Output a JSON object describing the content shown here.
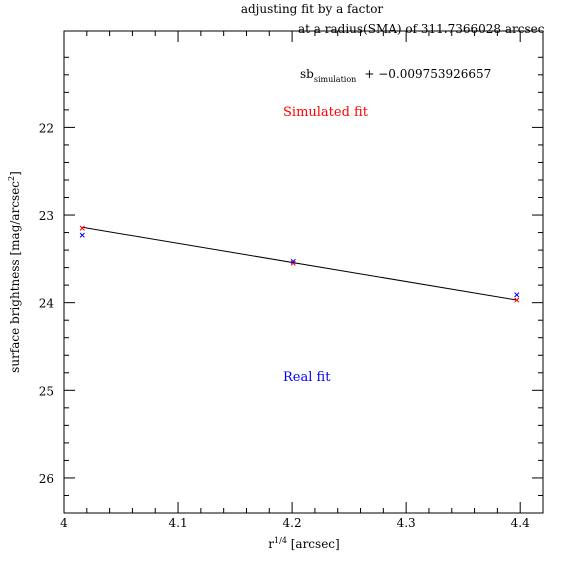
{
  "chart_data": {
    "type": "scatter",
    "title": "adjusting fit by a factor",
    "subtitle": "at a radius(SMA) of 311.7366028 arcsec",
    "annotations": {
      "sb_base": "sb",
      "sb_sub": "simulation",
      "sb_rest": "+ −0.009753926657",
      "simulated_label": "Simulated fit",
      "real_label": "Real fit"
    },
    "xlabel_base": "r",
    "xlabel_sup": "1/4",
    "xlabel_rest": " [arcsec]",
    "ylabel_base": "surface brightness [mag/arcsec",
    "ylabel_sup": "2",
    "ylabel_rest": "]",
    "xlim": [
      4.0,
      4.42
    ],
    "ylim": [
      26.4,
      20.9
    ],
    "y_inverted": true,
    "xticks": [
      4.0,
      4.1,
      4.2,
      4.3,
      4.4
    ],
    "xtick_labels": [
      "4",
      "4.1",
      "4.2",
      "4.3",
      "4.4"
    ],
    "yticks": [
      22,
      23,
      24,
      25,
      26
    ],
    "ytick_labels": [
      "22",
      "23",
      "24",
      "25",
      "26"
    ],
    "series": [
      {
        "name": "Simulated fit",
        "color": "#ff0000",
        "marker": "x",
        "x": [
          4.016,
          4.201,
          4.397
        ],
        "y": [
          23.15,
          23.55,
          23.97
        ]
      },
      {
        "name": "Real fit",
        "color": "#0000ff",
        "marker": "x",
        "x": [
          4.016,
          4.201,
          4.397
        ],
        "y": [
          23.23,
          23.53,
          23.91
        ]
      }
    ],
    "fit_line": {
      "color": "#000000",
      "x": [
        4.016,
        4.397
      ],
      "y": [
        23.14,
        23.97
      ]
    },
    "grid": false
  }
}
